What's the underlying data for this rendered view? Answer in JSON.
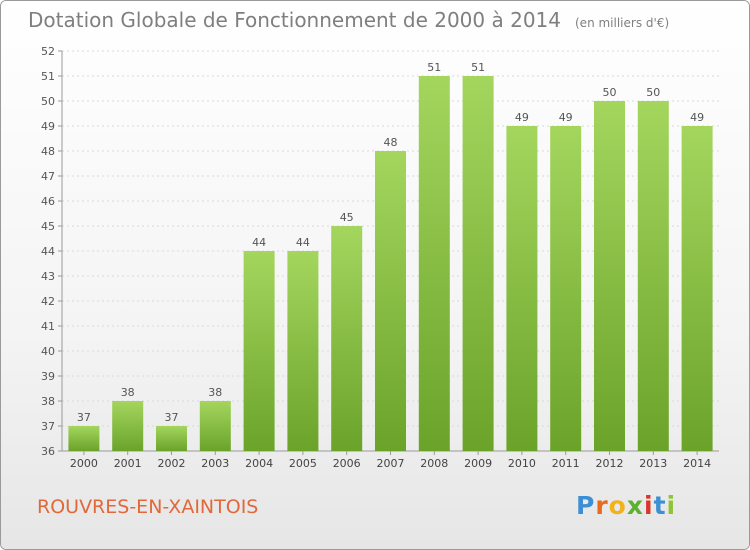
{
  "title": "Dotation Globale de Fonctionnement de 2000 à 2014",
  "unit_note": "(en milliers d'€)",
  "commune": "ROUVRES-EN-XAINTOIS",
  "logo": {
    "letters": [
      "P",
      "r",
      "o",
      "x",
      "i",
      "t",
      "i"
    ],
    "colors": [
      "#3b8fd4",
      "#e86a1c",
      "#f2b21b",
      "#5cb130",
      "#d9352a",
      "#3b8fd4",
      "#8fc43a"
    ]
  },
  "colors": {
    "bar_light": "#a4d65e",
    "bar_dark": "#6ba32a",
    "title": "#7f7f7f",
    "commune": "#e2683a",
    "grid": "#d9d9d9"
  },
  "chart_data": {
    "type": "bar",
    "title": "Dotation Globale de Fonctionnement de 2000 à 2014",
    "xlabel": "",
    "ylabel": "",
    "categories": [
      "2000",
      "2001",
      "2002",
      "2003",
      "2004",
      "2005",
      "2006",
      "2007",
      "2008",
      "2009",
      "2010",
      "2011",
      "2012",
      "2013",
      "2014"
    ],
    "values": [
      37,
      38,
      37,
      38,
      44,
      44,
      45,
      48,
      51,
      51,
      49,
      49,
      50,
      50,
      49
    ],
    "ylim": [
      36,
      52
    ],
    "yticks": [
      36,
      37,
      38,
      39,
      40,
      41,
      42,
      43,
      44,
      45,
      46,
      47,
      48,
      49,
      50,
      51,
      52
    ],
    "grid": true
  }
}
